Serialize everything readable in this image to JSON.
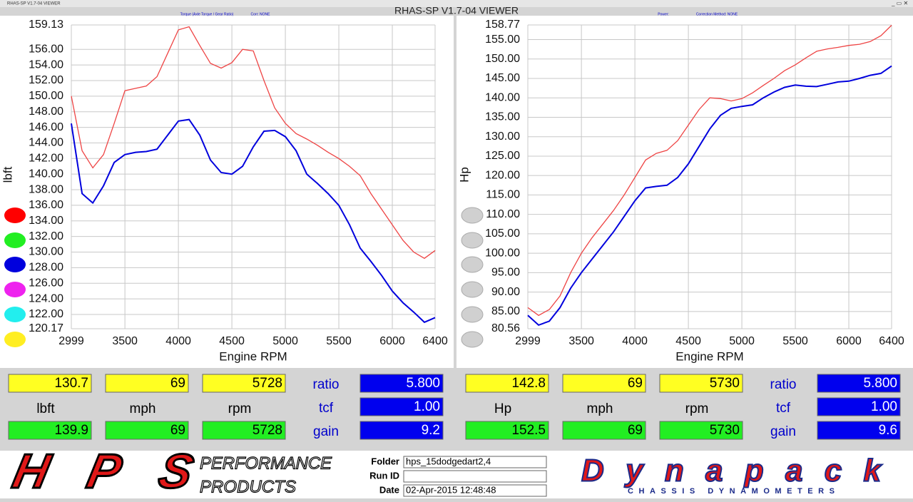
{
  "window": {
    "caption": "RHAS-SP V1.7-04  VIEWER",
    "title": "RHAS-SP V1.7-04  VIEWER"
  },
  "chart_data": [
    {
      "type": "line",
      "subtitle": "Torque (Axle Torque / Gear Ratio)",
      "note": "Corr: NONE",
      "x_label": "Engine RPM",
      "y_label": "lbft",
      "x": [
        2999,
        3100,
        3200,
        3300,
        3400,
        3500,
        3600,
        3700,
        3800,
        3900,
        4000,
        4100,
        4200,
        4300,
        4400,
        4500,
        4600,
        4700,
        4800,
        4900,
        5000,
        5100,
        5200,
        5300,
        5400,
        5500,
        5600,
        5700,
        5800,
        5900,
        6000,
        6100,
        6200,
        6300,
        6400
      ],
      "series": [
        {
          "color": "#ee4444",
          "values": [
            150.0,
            143.0,
            140.8,
            142.5,
            146.5,
            150.7,
            151.0,
            151.3,
            152.5,
            155.5,
            158.5,
            158.9,
            156.5,
            154.2,
            153.6,
            154.3,
            156.0,
            155.8,
            152.0,
            148.5,
            146.5,
            145.2,
            144.5,
            143.7,
            142.8,
            142.0,
            141.0,
            139.8,
            137.5,
            135.5,
            133.5,
            131.5,
            130.0,
            129.2,
            130.2
          ]
        },
        {
          "color": "#0000dd",
          "values": [
            146.5,
            137.5,
            136.3,
            138.5,
            141.5,
            142.5,
            142.8,
            142.9,
            143.2,
            145.0,
            146.8,
            147.0,
            145.0,
            141.8,
            140.2,
            140.0,
            141.0,
            143.5,
            145.5,
            145.6,
            144.8,
            143.0,
            140.0,
            138.8,
            137.5,
            136.0,
            133.5,
            130.5,
            128.8,
            127.0,
            125.0,
            123.5,
            122.3,
            121.0,
            121.6
          ]
        }
      ],
      "xlim": [
        2999,
        6400
      ],
      "xticks": [
        2999,
        3500,
        4000,
        4500,
        5000,
        5500,
        6000,
        6400
      ],
      "ylim": [
        120.17,
        159.13
      ],
      "yticks": [
        120.17,
        {
          "value": 122,
          "label": "122.00"
        },
        {
          "value": 124,
          "label": "124.00"
        },
        {
          "value": 126,
          "label": "126.00"
        },
        {
          "value": 128,
          "label": "128.00"
        },
        {
          "value": 130,
          "label": "130.00"
        },
        {
          "value": 132,
          "label": "132.00"
        },
        {
          "value": 134,
          "label": "134.00"
        },
        {
          "value": 136,
          "label": "136.00"
        },
        {
          "value": 138,
          "label": "138.00"
        },
        {
          "value": 140,
          "label": "140.00"
        },
        {
          "value": 142,
          "label": "142.00"
        },
        {
          "value": 144,
          "label": "144.00"
        },
        {
          "value": 146,
          "label": "146.00"
        },
        {
          "value": 148,
          "label": "148.00"
        },
        {
          "value": 150,
          "label": "150.00"
        },
        {
          "value": 152,
          "label": "152.00"
        },
        {
          "value": 154,
          "label": "154.00"
        },
        {
          "value": 156,
          "label": "156.00"
        },
        159.13
      ],
      "grid": true
    },
    {
      "type": "line",
      "subtitle": "Power:",
      "note": "Correction Method: NONE",
      "x_label": "Engine RPM",
      "y_label": "Hp",
      "x": [
        2999,
        3100,
        3200,
        3300,
        3400,
        3500,
        3600,
        3700,
        3800,
        3900,
        4000,
        4100,
        4200,
        4300,
        4400,
        4500,
        4600,
        4700,
        4800,
        4900,
        5000,
        5100,
        5200,
        5300,
        5400,
        5500,
        5600,
        5700,
        5800,
        5900,
        6000,
        6100,
        6200,
        6300,
        6400
      ],
      "series": [
        {
          "color": "#ee4444",
          "values": [
            86.0,
            84.0,
            85.5,
            89.0,
            95.0,
            100.0,
            104.0,
            107.5,
            111.0,
            115.0,
            119.5,
            124.0,
            125.7,
            126.5,
            129.0,
            133.0,
            137.0,
            140.0,
            139.8,
            139.2,
            139.8,
            141.3,
            143.2,
            145.0,
            147.0,
            148.5,
            150.3,
            152.0,
            152.6,
            153.0,
            153.5,
            153.8,
            154.5,
            156.0,
            158.7
          ]
        },
        {
          "color": "#0000dd",
          "values": [
            84.0,
            81.5,
            82.5,
            86.0,
            91.0,
            95.0,
            98.5,
            102.0,
            105.5,
            109.5,
            113.5,
            116.8,
            117.2,
            117.5,
            119.5,
            123.0,
            127.5,
            132.0,
            135.5,
            137.3,
            137.8,
            138.2,
            140.0,
            141.5,
            142.7,
            143.3,
            143.0,
            142.9,
            143.5,
            144.1,
            144.3,
            145.0,
            145.8,
            146.3,
            148.2
          ]
        }
      ],
      "xlim": [
        2999,
        6400
      ],
      "xticks": [
        2999,
        3500,
        4000,
        4500,
        5000,
        5500,
        6000,
        6400
      ],
      "ylim": [
        80.56,
        158.77
      ],
      "yticks": [
        80.56,
        {
          "value": 85,
          "label": "85.00"
        },
        {
          "value": 90,
          "label": "90.00"
        },
        {
          "value": 95,
          "label": "95.00"
        },
        {
          "value": 100,
          "label": "100.00"
        },
        {
          "value": 105,
          "label": "105.00"
        },
        {
          "value": 110,
          "label": "110.00"
        },
        {
          "value": 115,
          "label": "115.00"
        },
        {
          "value": 120,
          "label": "120.00"
        },
        {
          "value": 125,
          "label": "125.00"
        },
        {
          "value": 130,
          "label": "130.00"
        },
        {
          "value": 135,
          "label": "135.00"
        },
        {
          "value": 140,
          "label": "140.00"
        },
        {
          "value": 145,
          "label": "145.00"
        },
        {
          "value": 150,
          "label": "150.00"
        },
        {
          "value": 155,
          "label": "155.00"
        },
        158.77
      ],
      "grid": true
    }
  ],
  "panels": [
    {
      "top": [
        "130.7",
        "69",
        "5728"
      ],
      "units": [
        "lbft",
        "mph",
        "rpm"
      ],
      "bottom": [
        "139.9",
        "69",
        "5728"
      ],
      "params": [
        {
          "label": "ratio",
          "value": "5.800"
        },
        {
          "label": "tcf",
          "value": "1.00"
        },
        {
          "label": "gain",
          "value": "9.2"
        }
      ]
    },
    {
      "top": [
        "142.8",
        "69",
        "5730"
      ],
      "units": [
        "Hp",
        "mph",
        "rpm"
      ],
      "bottom": [
        "152.5",
        "69",
        "5730"
      ],
      "params": [
        {
          "label": "ratio",
          "value": "5.800"
        },
        {
          "label": "tcf",
          "value": "1.00"
        },
        {
          "label": "gain",
          "value": "9.6"
        }
      ]
    }
  ],
  "footer": {
    "logo": "HPS",
    "logo_line1": "PERFORMANCE",
    "logo_line2": "PRODUCTS",
    "fields": [
      {
        "label": "Folder",
        "value": "hps_15dodgedart2,4"
      },
      {
        "label": "Run ID"
      },
      {
        "label": "Date",
        "value": "02-Apr-2015   12:48:48"
      }
    ],
    "brand": "Dynapack",
    "brand_sub": "CHASSIS DYNAMOMETERS"
  }
}
